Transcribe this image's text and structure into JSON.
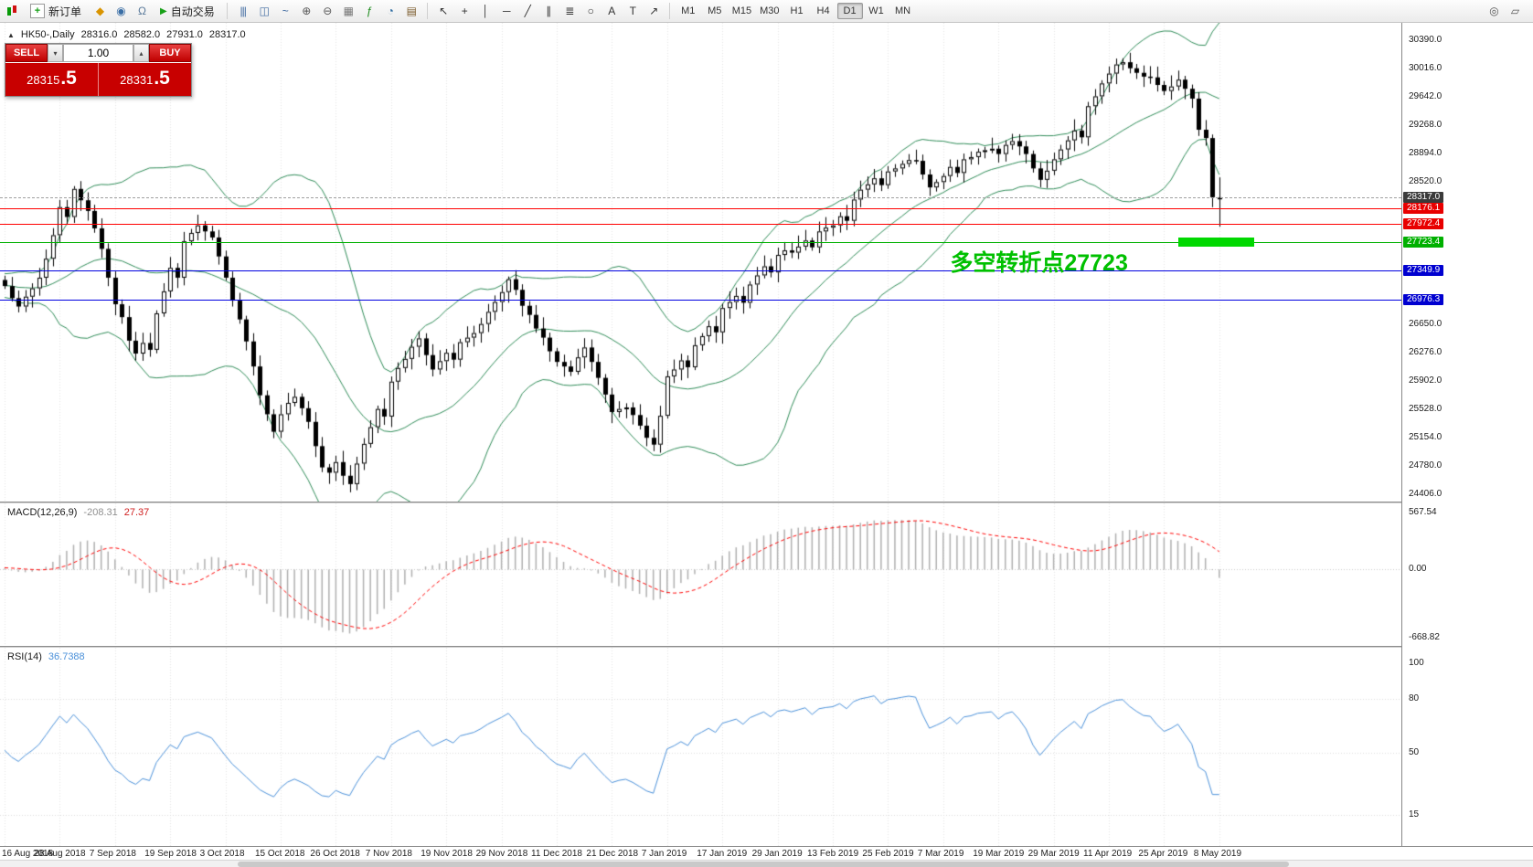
{
  "toolbar": {
    "new_order_label": "新订单",
    "new_order_icon_glyph": "+",
    "auto_trading_label": "自动交易",
    "auto_trading_icon_glyph": "▶",
    "left_icons": [
      {
        "n": "market-watch-icon",
        "g": "◆",
        "c": "#d99400"
      },
      {
        "n": "profile-icon",
        "g": "◉",
        "c": "#3a6ea5"
      },
      {
        "n": "support-icon",
        "g": "Ω",
        "c": "#5a7a9a"
      }
    ],
    "chart_icons": [
      {
        "n": "bar-chart-icon",
        "g": "|||",
        "c": "#3f6aa0"
      },
      {
        "n": "candlestick-chart-icon",
        "g": "◫",
        "c": "#3f6aa0"
      },
      {
        "n": "line-chart-icon",
        "g": "~",
        "c": "#3f6aa0"
      },
      {
        "n": "zoom-in-icon",
        "g": "⊕",
        "c": "#555555"
      },
      {
        "n": "zoom-out-icon",
        "g": "⊖",
        "c": "#555555"
      },
      {
        "n": "grid-icon",
        "g": "▦",
        "c": "#777777"
      },
      {
        "n": "indicators-icon",
        "g": "ƒ",
        "c": "#1a8a1a"
      },
      {
        "n": "periods-icon",
        "g": "◔",
        "c": "#2a6aa0"
      },
      {
        "n": "templates-icon",
        "g": "▤",
        "c": "#7a5a2a"
      }
    ],
    "draw_icons": [
      {
        "n": "cursor-icon",
        "g": "↖",
        "c": "#333333"
      },
      {
        "n": "crosshair-icon",
        "g": "+",
        "c": "#333333"
      },
      {
        "n": "vertical-line-icon",
        "g": "│",
        "c": "#333333"
      },
      {
        "n": "horizontal-line-icon",
        "g": "─",
        "c": "#333333"
      },
      {
        "n": "trendline-icon",
        "g": "╱",
        "c": "#333333"
      },
      {
        "n": "channel-icon",
        "g": "∥",
        "c": "#333333"
      },
      {
        "n": "fibonacci-icon",
        "g": "≣",
        "c": "#333333"
      },
      {
        "n": "shapes-icon",
        "g": "○",
        "c": "#333333"
      },
      {
        "n": "text-icon",
        "g": "A",
        "c": "#333333"
      },
      {
        "n": "label-icon",
        "g": "T",
        "c": "#333333"
      },
      {
        "n": "arrow-tools-icon",
        "g": "↗",
        "c": "#333333"
      }
    ],
    "timeframes": {
      "items": [
        "M1",
        "M5",
        "M15",
        "M30",
        "H1",
        "H4",
        "D1",
        "W1",
        "MN"
      ],
      "active": "D1"
    },
    "right_icons": [
      {
        "n": "search-icon",
        "g": "◎",
        "c": "#555555"
      },
      {
        "n": "layout-icon",
        "g": "▱",
        "c": "#555555"
      }
    ]
  },
  "trade_panel": {
    "sell_label": "SELL",
    "buy_label": "BUY",
    "volume": "1.00",
    "volume_down_glyph": "▾",
    "volume_up_glyph": "▴",
    "sell_price": {
      "main": "28315",
      "big": ".5"
    },
    "buy_price": {
      "main": "28331",
      "big": ".5"
    }
  },
  "chart_header": {
    "marker_glyph": "▲",
    "symbol_period": "HK50-,Daily",
    "open": "28316.0",
    "high": "28582.0",
    "low": "27931.0",
    "close": "28317.0"
  },
  "price_axis": {
    "plain": [
      "30390.0",
      "30016.0",
      "29642.0",
      "29268.0",
      "28894.0",
      "28520.0",
      "26650.0",
      "26276.0",
      "25902.0",
      "25528.0",
      "25154.0",
      "24780.0",
      "24406.0"
    ]
  },
  "macd_panel": {
    "name": "MACD(12,26,9)",
    "value_main": "-208.31",
    "value_signal": "27.37",
    "axis": [
      "567.54",
      "0.00",
      "-668.82"
    ]
  },
  "rsi_panel": {
    "name": "RSI(14)",
    "value": "36.7388",
    "axis": [
      "100",
      "80",
      "50",
      "15"
    ]
  },
  "chart_data": {
    "type": "candlestick",
    "symbol": "HK50-",
    "period": "Daily",
    "last_ohlc": {
      "open": 28316.0,
      "high": 28582.0,
      "low": 27931.0,
      "close": 28317.0
    },
    "y_axis": {
      "min": 24406.0,
      "max": 30390.0,
      "step": 374.0
    },
    "candles_per_label": 8,
    "x_labels": [
      "16 Aug 2018",
      "28 Aug 2018",
      "7 Sep 2018",
      "19 Sep 2018",
      "3 Oct 2018",
      "15 Oct 2018",
      "26 Oct 2018",
      "7 Nov 2018",
      "19 Nov 2018",
      "29 Nov 2018",
      "11 Dec 2018",
      "21 Dec 2018",
      "7 Jan 2019",
      "17 Jan 2019",
      "29 Jan 2019",
      "13 Feb 2019",
      "25 Feb 2019",
      "7 Mar 2019",
      "19 Mar 2019",
      "29 Mar 2019",
      "11 Apr 2019",
      "25 Apr 2019",
      "8 May 2019"
    ],
    "closes": [
      27150,
      26990,
      26880,
      27010,
      27120,
      27260,
      27510,
      27820,
      28190,
      28060,
      28430,
      28280,
      28140,
      27910,
      27640,
      27260,
      26910,
      26740,
      26430,
      26260,
      26400,
      26310,
      26790,
      27080,
      27390,
      27260,
      27740,
      27850,
      27950,
      27870,
      27790,
      27540,
      27260,
      26960,
      26710,
      26420,
      26090,
      25710,
      25460,
      25230,
      25460,
      25610,
      25690,
      25540,
      25360,
      25040,
      24760,
      24690,
      24830,
      24650,
      24540,
      24810,
      25070,
      25290,
      25530,
      25430,
      25890,
      26070,
      26190,
      26350,
      26460,
      26240,
      26050,
      26160,
      26270,
      26180,
      26410,
      26470,
      26530,
      26650,
      26810,
      26940,
      27070,
      27240,
      27100,
      26890,
      26770,
      26590,
      26470,
      26290,
      26150,
      26090,
      26020,
      26210,
      26340,
      26150,
      25940,
      25720,
      25490,
      25530,
      25550,
      25450,
      25310,
      25150,
      25060,
      25440,
      25960,
      26050,
      26170,
      26080,
      26370,
      26490,
      26620,
      26540,
      26860,
      26940,
      27020,
      26930,
      27170,
      27290,
      27410,
      27330,
      27560,
      27620,
      27590,
      27670,
      27750,
      27660,
      27870,
      27920,
      27950,
      28070,
      28010,
      28290,
      28420,
      28490,
      28570,
      28480,
      28660,
      28700,
      28760,
      28810,
      28800,
      28620,
      28450,
      28520,
      28600,
      28720,
      28640,
      28820,
      28850,
      28920,
      28940,
      28960,
      28890,
      29010,
      29060,
      28990,
      28890,
      28700,
      28550,
      28670,
      28820,
      28950,
      29070,
      29200,
      29110,
      29520,
      29650,
      29820,
      29950,
      30070,
      30100,
      30020,
      29960,
      29910,
      29900,
      29800,
      29720,
      29780,
      29870,
      29750,
      29620,
      29210,
      29100,
      28320,
      28317
    ],
    "levels": [
      {
        "price": 28317.0,
        "color": "#a0a0a0",
        "style": "dashed",
        "label": "28317.0",
        "label_bg": "#3a3a3a"
      },
      {
        "price": 28176.1,
        "color": "#ff0000",
        "style": "solid",
        "label": "28176.1",
        "label_bg": "#e80000"
      },
      {
        "price": 27972.4,
        "color": "#ff0000",
        "style": "solid",
        "label": "27972.4",
        "label_bg": "#e80000"
      },
      {
        "price": 27723.4,
        "color": "#00b000",
        "style": "solid",
        "label": "27723.4",
        "label_bg": "#00b000"
      },
      {
        "price": 27349.9,
        "color": "#0000e0",
        "style": "solid",
        "label": "27349.9",
        "label_bg": "#0000d0"
      },
      {
        "price": 26976.3,
        "color": "#0000e0",
        "style": "solid",
        "label": "26976.3",
        "label_bg": "#0000d0"
      }
    ],
    "highlight_bar": {
      "price": 27723.4,
      "x_from_index": 170,
      "x_to_index": 181,
      "color": "#00d800"
    },
    "annotation": {
      "text": "多空转折点27723",
      "color": "#00c000",
      "price": 27520,
      "index": 137
    },
    "bollinger": {
      "period": 20,
      "deviation": 2,
      "color": "#2E8B57"
    },
    "macd": {
      "fast": 12,
      "slow": 26,
      "signal": 9,
      "histogram_color": "#b0b0b0",
      "signal_color": "#ff0000",
      "range": [
        -700,
        600
      ]
    },
    "rsi": {
      "period": 14,
      "color": "#4a90d9",
      "levels": [
        80,
        50,
        15
      ],
      "range": [
        0,
        100
      ]
    }
  }
}
